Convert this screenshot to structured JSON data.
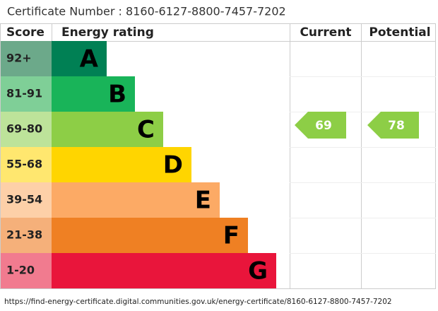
{
  "header": "Certificate Number : 8160-6127-8800-7457-7202",
  "columns": [
    "Score",
    "Energy rating",
    "Current",
    "Potential"
  ],
  "bands": [
    {
      "score": "92+",
      "letter": "A",
      "color": "#008054",
      "score_color": "#6ca98a"
    },
    {
      "score": "81-91",
      "letter": "B",
      "color": "#19b459",
      "score_color": "#7fcf97"
    },
    {
      "score": "69-80",
      "letter": "C",
      "color": "#8dce46",
      "score_color": "#bde39a"
    },
    {
      "score": "55-68",
      "letter": "D",
      "color": "#ffd500",
      "score_color": "#ffe76f"
    },
    {
      "score": "39-54",
      "letter": "E",
      "color": "#fcaa65",
      "score_color": "#fdd0a8"
    },
    {
      "score": "21-38",
      "letter": "F",
      "color": "#ef8023",
      "score_color": "#f5b07a"
    },
    {
      "score": "1-20",
      "letter": "G",
      "color": "#e9153b",
      "score_color": "#f17b8f"
    }
  ],
  "current": 69,
  "potential": 78,
  "footer": "https://find-energy-certificate.digital.communities.gov.uk/energy-certificate/8160-6127-8800-7457-7202"
}
